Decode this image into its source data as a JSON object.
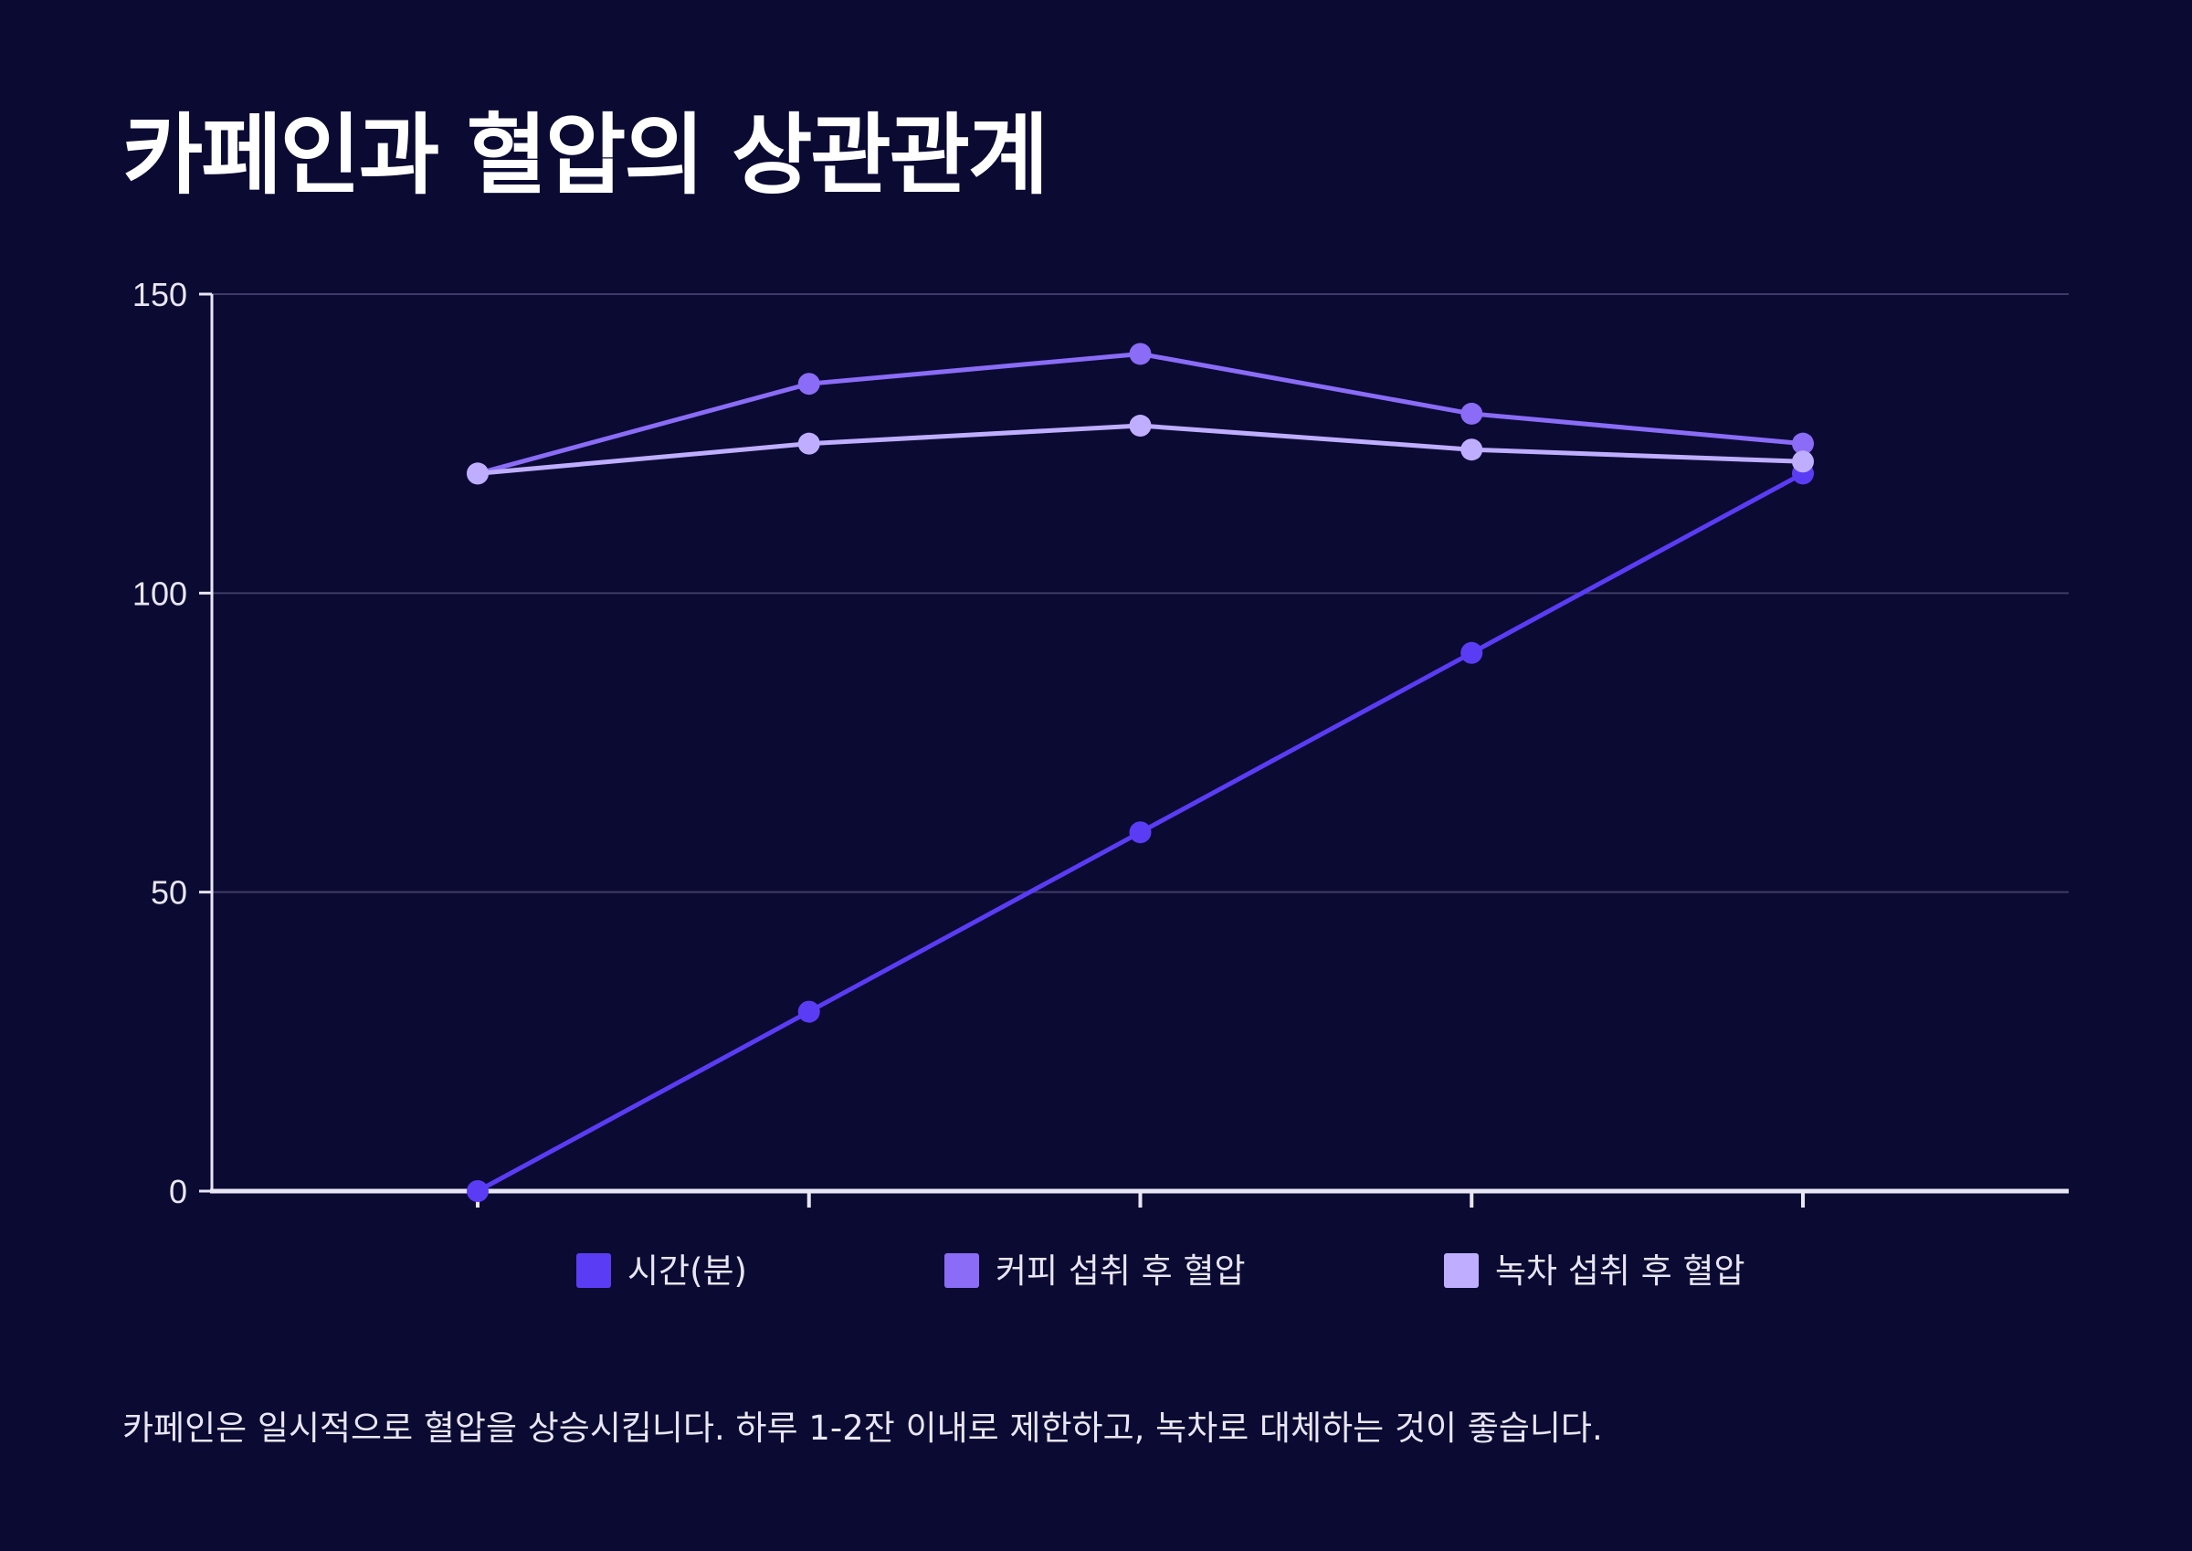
{
  "title": "카페인과 혈압의 상관관계",
  "caption": "카페인은 일시적으로 혈압을 상승시킵니다. 하루 1-2잔 이내로 제한하고, 녹차로 대체하는 것이 좋습니다.",
  "colors": {
    "background": "#0b0a33",
    "text": "#ffffff",
    "axis": "#e8e6f5",
    "grid": "#3e3c66"
  },
  "chart_data": {
    "type": "line",
    "title": "카페인과 혈압의 상관관계",
    "xlabel": "",
    "ylabel": "",
    "categories": [
      "",
      "",
      "",
      "",
      ""
    ],
    "ylim": [
      0,
      150
    ],
    "yticks": [
      0,
      50,
      100,
      150
    ],
    "grid": true,
    "legend_position": "bottom",
    "series": [
      {
        "name": "시간(분)",
        "color": "#5b3cf5",
        "values": [
          0,
          30,
          60,
          90,
          120
        ]
      },
      {
        "name": "커피 섭취 후 혈압",
        "color": "#8a6cf7",
        "values": [
          120,
          135,
          140,
          130,
          125
        ]
      },
      {
        "name": "녹차 섭취 후 혈압",
        "color": "#bfaeff",
        "values": [
          120,
          125,
          128,
          124,
          122
        ]
      }
    ]
  }
}
